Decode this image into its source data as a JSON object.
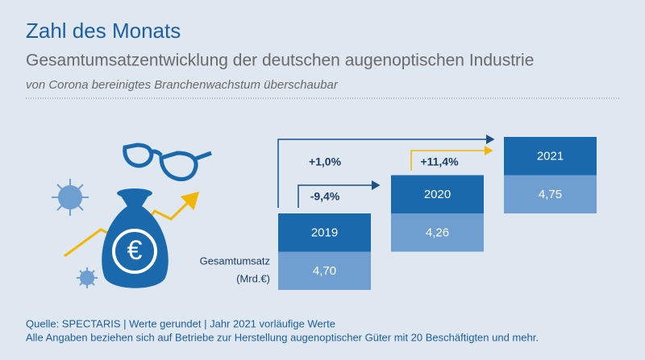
{
  "header": {
    "title": "Zahl des Monats",
    "subtitle": "Gesamtumsatzentwicklung der deutschen augenoptischen Industrie",
    "tagline": "von Corona bereinigtes Branchenwachstum überschaubar"
  },
  "figure": {
    "label": "Gesamtumsatz",
    "unit": "(Mrd.€)",
    "boxes": [
      {
        "year": "2019",
        "value": "4,70"
      },
      {
        "year": "2020",
        "value": "4,26"
      },
      {
        "year": "2021",
        "value": "4,75"
      }
    ],
    "changes": [
      "+1,0%",
      "-9,4%",
      "+11,4%"
    ]
  },
  "footer": {
    "source": "Quelle: SPECTARIS | Werte gerundet | Jahr 2021 vorläufige Werte",
    "note": "Alle Angaben beziehen sich auf Betriebe zur Herstellung augenoptischer Güter mit 20 Beschäftigten und mehr."
  }
}
